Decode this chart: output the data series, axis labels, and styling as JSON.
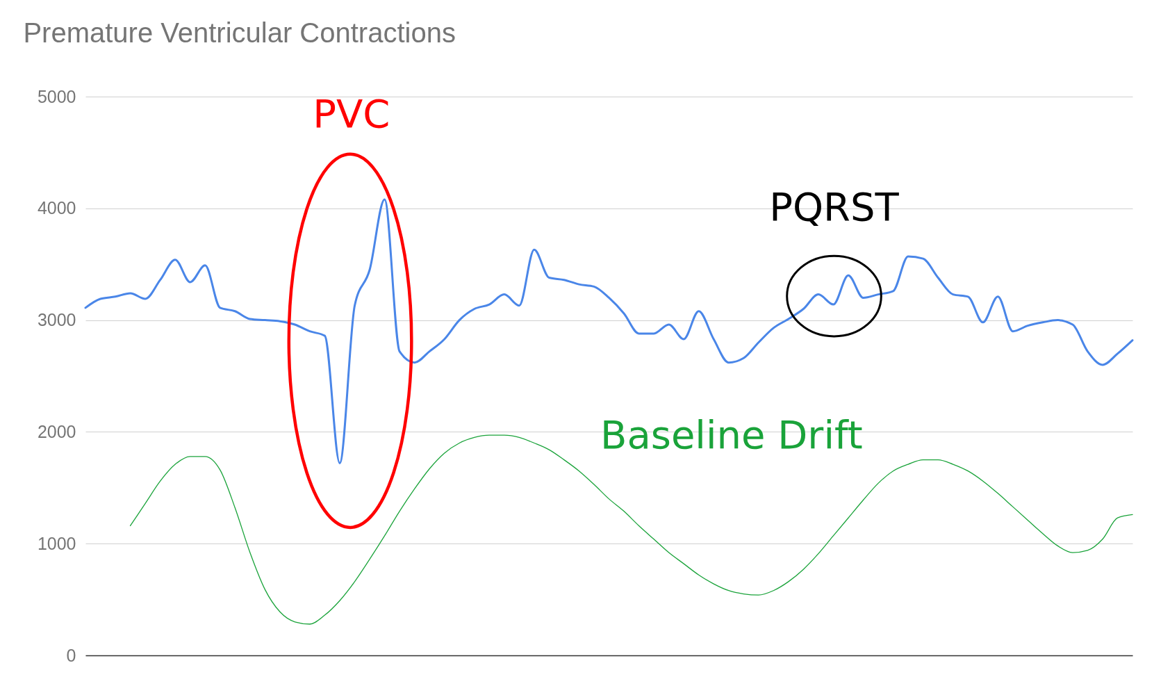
{
  "chart_data": {
    "type": "line",
    "title": "Premature Ventricular Contractions",
    "categories": [
      null,
      null,
      null,
      null,
      null,
      null,
      null,
      null,
      null,
      null,
      null,
      null,
      null,
      null,
      null,
      null,
      null,
      null,
      null,
      null,
      null,
      null,
      null,
      null,
      null,
      null,
      null,
      null,
      null,
      null,
      null,
      null,
      null,
      null,
      null,
      null,
      null,
      null,
      null,
      null,
      null,
      null,
      null,
      null,
      null,
      null,
      null,
      null,
      null,
      null,
      null,
      null,
      null,
      null,
      null,
      null,
      null,
      null,
      null,
      null,
      null,
      null,
      null,
      null,
      null,
      null,
      null,
      null,
      null,
      null,
      null
    ],
    "series": [
      {
        "color": "#4a86e8",
        "values": [
          3110,
          3190,
          3210,
          3240,
          3190,
          3360,
          3540,
          3340,
          3490,
          3110,
          3080,
          3010,
          3000,
          2990,
          2960,
          2900,
          2860,
          1720,
          3130,
          3450,
          4080,
          2720,
          2620,
          2720,
          2830,
          3000,
          3100,
          3140,
          3230,
          3130,
          3630,
          3380,
          3360,
          3320,
          3300,
          3200,
          3060,
          2880,
          2880,
          2960,
          2830,
          3080,
          2830,
          2620,
          2660,
          2800,
          2930,
          3010,
          3100,
          3230,
          3140,
          3400,
          3200,
          3230,
          3260,
          3570,
          3550,
          3380,
          3230,
          3210,
          2980,
          3210,
          2900,
          2950,
          2980,
          3000,
          2960,
          2720,
          2600,
          2700,
          2820
        ]
      },
      {
        "color": "#1aa33a",
        "values": [
          null,
          null,
          null,
          1160,
          1360,
          1560,
          1710,
          1780,
          1780,
          1660,
          1320,
          920,
          590,
          390,
          300,
          280,
          360,
          490,
          660,
          860,
          1070,
          1290,
          1490,
          1670,
          1810,
          1900,
          1950,
          1970,
          1970,
          1950,
          1900,
          1840,
          1750,
          1650,
          1530,
          1400,
          1290,
          1160,
          1040,
          920,
          820,
          720,
          640,
          580,
          550,
          540,
          580,
          660,
          770,
          910,
          1070,
          1230,
          1390,
          1540,
          1650,
          1710,
          1750,
          1750,
          1710,
          1650,
          1560,
          1450,
          1330,
          1210,
          1090,
          980,
          920,
          940,
          1040,
          1230,
          1260
        ]
      }
    ],
    "ylim": [
      0,
      5000
    ],
    "yticks": [
      0,
      1000,
      2000,
      3000,
      4000,
      5000
    ],
    "grid": "y",
    "tick_labels": "y",
    "annotations": [
      "PVC",
      "PQRST",
      "Baseline Drift"
    ]
  }
}
